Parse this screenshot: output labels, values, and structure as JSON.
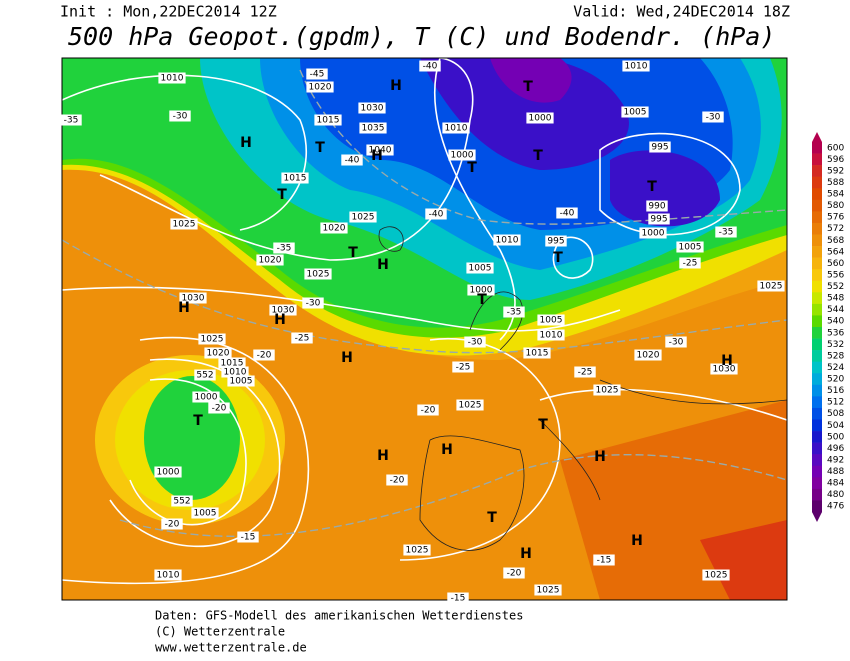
{
  "header": {
    "init": "Init : Mon,22DEC2014 12Z",
    "valid": "Valid: Wed,24DEC2014 18Z",
    "title": "500 hPa Geopot.(gpdm), T (C) und Bodendr. (hPa)"
  },
  "colorbar": {
    "labels": [
      600,
      596,
      592,
      588,
      584,
      580,
      576,
      572,
      568,
      564,
      560,
      556,
      552,
      548,
      544,
      540,
      536,
      532,
      528,
      524,
      520,
      516,
      512,
      508,
      504,
      500,
      496,
      492,
      488,
      484,
      480,
      476
    ],
    "colors": [
      "#b4004e",
      "#c8103c",
      "#d42a22",
      "#dc3a10",
      "#e04a00",
      "#e25a04",
      "#e66c06",
      "#ea7e08",
      "#ee900a",
      "#f2a20c",
      "#f6b40e",
      "#f8c80c",
      "#f0e000",
      "#c8e800",
      "#96e400",
      "#5ada00",
      "#20d23c",
      "#00d070",
      "#00cc9e",
      "#00c4c8",
      "#00acdc",
      "#0090e8",
      "#0070ee",
      "#0050e6",
      "#0030dc",
      "#1818cc",
      "#3a10c8",
      "#5a08c0",
      "#7400b4",
      "#8000a0",
      "#760088",
      "#5c006c"
    ]
  },
  "map": {
    "labels": [
      "1010",
      "1020",
      "1030",
      "1015",
      "1035",
      "1040",
      "H",
      "T",
      "H",
      "H",
      "T",
      "1000",
      "1010",
      "1000",
      "T",
      "T",
      "1005",
      "1010",
      "995",
      "T",
      "990",
      "995",
      "1000",
      "1005",
      "1025",
      "1020",
      "1025",
      "1015",
      "T",
      "T",
      "H",
      "1020",
      "1025",
      "1010",
      "995",
      "T",
      "1005",
      "1000",
      "T",
      "1005",
      "1010",
      "1015",
      "1030",
      "H",
      "1030",
      "H",
      "1025",
      "1020",
      "1015",
      "1010",
      "1005",
      "H",
      "1000",
      "T",
      "1000",
      "1005",
      "1010",
      "1025",
      "1025",
      "1025",
      "1020",
      "1030",
      "H",
      "H",
      "H",
      "T",
      "H",
      "T",
      "H",
      "H",
      "1025",
      "1025",
      "1025",
      "-45",
      "-40",
      "-35",
      "-30",
      "-40",
      "-35",
      "-30",
      "-25",
      "-20",
      "-20",
      "-20",
      "-20",
      "-25",
      "-30",
      "-35",
      "-40",
      "-40",
      "-35",
      "-30",
      "-25",
      "-30",
      "-25",
      "-20",
      "-15",
      "-15",
      "-20",
      "-15",
      "552",
      "552"
    ]
  },
  "footer": {
    "line1": "Daten: GFS-Modell des amerikanischen Wetterdienstes",
    "line2": "(C) Wetterzentrale",
    "line3": "www.wetterzentrale.de"
  }
}
